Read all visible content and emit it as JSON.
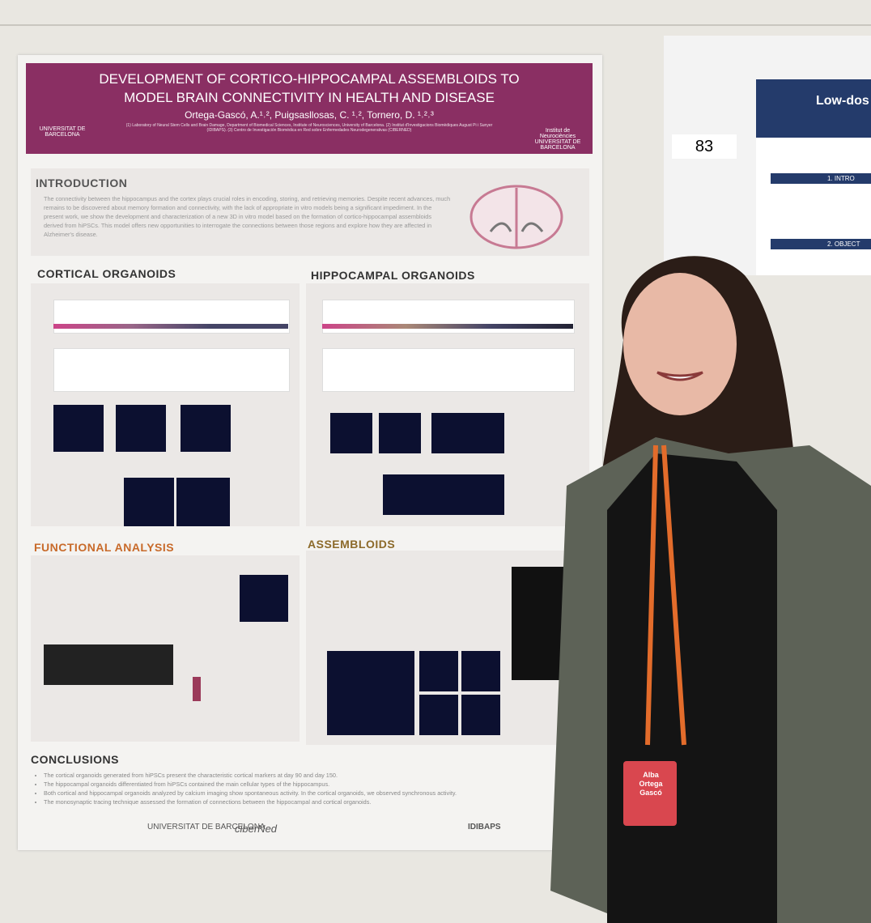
{
  "poster": {
    "title": "DEVELOPMENT OF CORTICO-HIPPOCAMPAL ASSEMBLOIDS TO MODEL BRAIN CONNECTIVITY IN HEALTH AND DISEASE",
    "authors": "Ortega-Gascó, A.¹˒², Puigsasllosas, C. ¹˒², Tornero, D. ¹˒²˒³",
    "affiliations": "(1) Laboratory of Neural Stem Cells and Brain Damage, Department of Biomedical Sciences, Institute of Neurosciences, University of Barcelona. (2) Institut d'Investigacions Biomèdiques August Pi i Sunyer (IDIBAPS). (3) Centro de Investigación Biomédica en Red sobre Enfermedades Neurodegenerativas (CIBERNED)",
    "logo_left": "UNIVERSITAT DE BARCELONA",
    "logo_right": "Institut de Neurociències UNIVERSITAT DE BARCELONA",
    "introduction": {
      "heading": "INTRODUCTION",
      "text": "The connectivity between the hippocampus and the cortex plays crucial roles in encoding, storing, and retrieving memories. Despite recent advances, much remains to be discovered about memory formation and connectivity, with the lack of appropriate in vitro models being a significant impediment. In the present work, we show the development and characterization of a new 3D in vitro model based on the formation of cortico-hippocampal assembloids derived from hiPSCs. This model offers new opportunities to interrogate the connections between those regions and explore how they are affected in Alzheimer's disease."
    },
    "sections": [
      "CORTICAL ORGANOIDS",
      "HIPPOCAMPAL ORGANOIDS",
      "FUNCTIONAL ANALYSIS",
      "ASSEMBLOIDS"
    ],
    "conclusions": {
      "heading": "CONCLUSIONS",
      "items": [
        "The cortical organoids generated from hiPSCs present the characteristic cortical markers at day 90 and day 150.",
        "The hippocampal organoids differentiated from hiPSCs contained the main cellular types of the hippocampus.",
        "Both cortical and hippocampal organoids analyzed by calcium imaging show spontaneous activity. In the cortical organoids, we observed synchronous activity.",
        "The monosynaptic tracing technique assessed the formation of connections between the hippocampal and cortical organoids."
      ]
    },
    "footer_logos": [
      "UNIVERSITAT DE BARCELONA",
      "ciberNed",
      "IDIBAPS"
    ]
  },
  "poster_number": "83",
  "neighbor_poster": {
    "title": "Low-dos",
    "headings": [
      "1. INTRO",
      "2. OBJECT"
    ]
  },
  "badge": [
    "Alba",
    "Ortega",
    "Gascó"
  ]
}
